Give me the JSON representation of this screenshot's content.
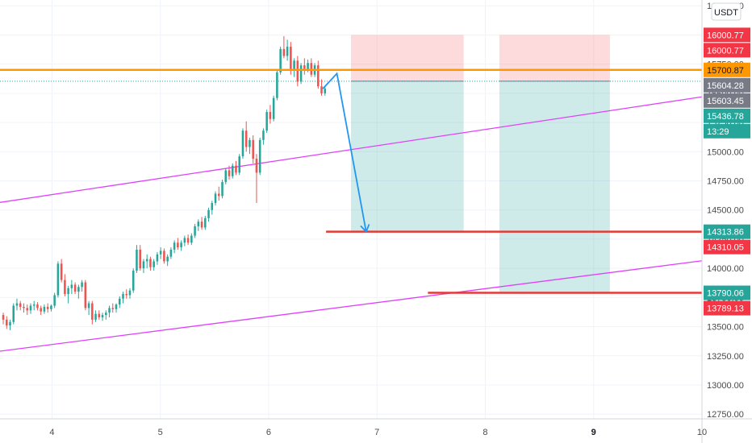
{
  "chart_data": {
    "type": "candlestick",
    "currency": "USDT",
    "x_axis": {
      "ticks": [
        {
          "label": "4",
          "value": 4
        },
        {
          "label": "5",
          "value": 5
        },
        {
          "label": "6",
          "value": 6
        },
        {
          "label": "7",
          "value": 7
        },
        {
          "label": "8",
          "value": 8
        },
        {
          "label": "9",
          "value": 9,
          "bold": true
        },
        {
          "label": "10",
          "value": 10
        }
      ],
      "range": [
        3.52,
        10.0
      ]
    },
    "y_axis": {
      "ticks": [
        "12750.00",
        "13000.00",
        "13250.00",
        "13500.00",
        "13750.00",
        "14000.00",
        "14250.00",
        "14500.00",
        "14750.00",
        "15000.00",
        "15250.00",
        "15500.00",
        "15750.00",
        "16000.00",
        "16250.00"
      ],
      "range": [
        12710,
        16300
      ]
    },
    "price_tags": [
      {
        "label": "16000.77",
        "value": 16000.77,
        "color": "#f23645"
      },
      {
        "label": "16000.77",
        "value": 15990,
        "color": "#f23645"
      },
      {
        "label": "15700.87",
        "value": 15700.87,
        "color": "#ff9800",
        "dark_text": true
      },
      {
        "label": "15604.28",
        "value": 15604.28,
        "color": "#787b86"
      },
      {
        "label": "15603.45",
        "value": 15603.45,
        "color": "#787b86"
      },
      {
        "label": "15436.78",
        "value": 15436.78,
        "color": "#26a69a"
      },
      {
        "label": "13:29",
        "value": 15350,
        "color": "#26a69a"
      },
      {
        "label": "14313.86",
        "value": 14313.86,
        "color": "#26a69a"
      },
      {
        "label": "14310.05",
        "value": 14310.05,
        "color": "#f23645"
      },
      {
        "label": "13790.06",
        "value": 13790.06,
        "color": "#26a69a"
      },
      {
        "label": "13789.13",
        "value": 13789.13,
        "color": "#f23645"
      }
    ],
    "horizontal_lines": [
      {
        "name": "resistance",
        "value": 15700.87,
        "x_start": 3.52,
        "x_end": 10.0,
        "color": "#ff9800"
      },
      {
        "name": "target-1",
        "value": 14313.86,
        "x_start": 6.53,
        "x_end": 10.0,
        "color": "#e53935"
      },
      {
        "name": "target-2",
        "value": 13790.06,
        "x_start": 7.47,
        "x_end": 10.0,
        "color": "#e53935"
      },
      {
        "name": "last-price",
        "value": 15603.45,
        "x_start": 3.52,
        "x_end": 10.0,
        "color": "#26a69a",
        "dotted": true
      }
    ],
    "trend_lines": [
      {
        "name": "upper-channel",
        "from": [
          3.52,
          14565
        ],
        "to": [
          10.0,
          15470
        ],
        "color": "#e040fb"
      },
      {
        "name": "lower-channel",
        "from": [
          3.52,
          13290
        ],
        "to": [
          10.0,
          14065
        ],
        "color": "#e040fb"
      }
    ],
    "positions": [
      {
        "name": "short-position-1",
        "x_start": 6.76,
        "x_end": 7.8,
        "stop": 16000.77,
        "entry": 15604.28,
        "target": 14313.86
      },
      {
        "name": "short-position-2",
        "x_start": 8.13,
        "x_end": 9.15,
        "stop": 16000.77,
        "entry": 15604.28,
        "target": 13790.06
      }
    ],
    "projection_path": [
      [
        6.5,
        15540
      ],
      [
        6.63,
        15670
      ],
      [
        6.9,
        14313.86
      ]
    ],
    "candles_ohlc": [
      [
        13600,
        13620,
        13520,
        13560
      ],
      [
        13560,
        13590,
        13480,
        13510
      ],
      [
        13510,
        13560,
        13470,
        13540
      ],
      [
        13540,
        13700,
        13520,
        13680
      ],
      [
        13680,
        13740,
        13640,
        13700
      ],
      [
        13700,
        13720,
        13640,
        13670
      ],
      [
        13670,
        13700,
        13620,
        13660
      ],
      [
        13660,
        13690,
        13600,
        13640
      ],
      [
        13640,
        13700,
        13610,
        13680
      ],
      [
        13680,
        13720,
        13640,
        13690
      ],
      [
        13690,
        13710,
        13640,
        13660
      ],
      [
        13660,
        13680,
        13600,
        13630
      ],
      [
        13630,
        13690,
        13610,
        13670
      ],
      [
        13670,
        13700,
        13620,
        13650
      ],
      [
        13650,
        13690,
        13630,
        13680
      ],
      [
        13680,
        13790,
        13660,
        13770
      ],
      [
        13770,
        14060,
        13750,
        14040
      ],
      [
        14040,
        14080,
        13880,
        13900
      ],
      [
        13900,
        13950,
        13760,
        13780
      ],
      [
        13780,
        13850,
        13700,
        13830
      ],
      [
        13830,
        13900,
        13780,
        13860
      ],
      [
        13860,
        13880,
        13780,
        13800
      ],
      [
        13800,
        13860,
        13740,
        13840
      ],
      [
        13840,
        13900,
        13800,
        13880
      ],
      [
        13880,
        13900,
        13640,
        13660
      ],
      [
        13660,
        13720,
        13600,
        13700
      ],
      [
        13700,
        13720,
        13520,
        13560
      ],
      [
        13560,
        13640,
        13540,
        13610
      ],
      [
        13610,
        13640,
        13560,
        13580
      ],
      [
        13580,
        13620,
        13550,
        13600
      ],
      [
        13600,
        13640,
        13560,
        13620
      ],
      [
        13620,
        13680,
        13580,
        13660
      ],
      [
        13660,
        13700,
        13620,
        13650
      ],
      [
        13650,
        13700,
        13620,
        13690
      ],
      [
        13690,
        13760,
        13660,
        13740
      ],
      [
        13740,
        13800,
        13700,
        13780
      ],
      [
        13780,
        13820,
        13740,
        13770
      ],
      [
        13770,
        13830,
        13740,
        13810
      ],
      [
        13810,
        14000,
        13790,
        13980
      ],
      [
        13980,
        14200,
        13960,
        14160
      ],
      [
        14160,
        14200,
        13980,
        14000
      ],
      [
        14000,
        14080,
        13960,
        14060
      ],
      [
        14060,
        14120,
        14000,
        14080
      ],
      [
        14080,
        14100,
        13980,
        14010
      ],
      [
        14010,
        14080,
        13980,
        14060
      ],
      [
        14060,
        14140,
        14030,
        14120
      ],
      [
        14120,
        14180,
        14080,
        14150
      ],
      [
        14150,
        14170,
        14040,
        14060
      ],
      [
        14060,
        14120,
        14020,
        14100
      ],
      [
        14100,
        14180,
        14080,
        14160
      ],
      [
        14160,
        14240,
        14130,
        14220
      ],
      [
        14220,
        14260,
        14160,
        14180
      ],
      [
        14180,
        14240,
        14150,
        14220
      ],
      [
        14220,
        14280,
        14190,
        14260
      ],
      [
        14260,
        14290,
        14200,
        14220
      ],
      [
        14220,
        14300,
        14200,
        14280
      ],
      [
        14280,
        14380,
        14260,
        14360
      ],
      [
        14360,
        14420,
        14320,
        14400
      ],
      [
        14400,
        14440,
        14330,
        14350
      ],
      [
        14350,
        14450,
        14330,
        14430
      ],
      [
        14430,
        14520,
        14400,
        14500
      ],
      [
        14500,
        14580,
        14460,
        14560
      ],
      [
        14560,
        14660,
        14540,
        14640
      ],
      [
        14640,
        14700,
        14580,
        14620
      ],
      [
        14620,
        14760,
        14600,
        14740
      ],
      [
        14740,
        14860,
        14720,
        14840
      ],
      [
        14840,
        14880,
        14760,
        14790
      ],
      [
        14790,
        14900,
        14770,
        14880
      ],
      [
        14880,
        14920,
        14800,
        14820
      ],
      [
        14820,
        14980,
        14800,
        14960
      ],
      [
        14960,
        15200,
        14940,
        15180
      ],
      [
        15180,
        15260,
        15000,
        15040
      ],
      [
        15040,
        15120,
        14980,
        15100
      ],
      [
        15100,
        15140,
        14900,
        14940
      ],
      [
        14940,
        14980,
        14560,
        14820
      ],
      [
        14820,
        15120,
        14800,
        15100
      ],
      [
        15100,
        15200,
        15060,
        15180
      ],
      [
        15180,
        15360,
        15160,
        15340
      ],
      [
        15340,
        15400,
        15240,
        15280
      ],
      [
        15280,
        15480,
        15260,
        15460
      ],
      [
        15460,
        15700,
        15440,
        15680
      ],
      [
        15680,
        15900,
        15660,
        15880
      ],
      [
        15880,
        15990,
        15800,
        15820
      ],
      [
        15820,
        15960,
        15780,
        15900
      ],
      [
        15900,
        15940,
        15660,
        15700
      ],
      [
        15700,
        15800,
        15640,
        15780
      ],
      [
        15780,
        15820,
        15560,
        15600
      ],
      [
        15600,
        15760,
        15580,
        15740
      ],
      [
        15740,
        15800,
        15660,
        15700
      ],
      [
        15700,
        15790,
        15680,
        15760
      ],
      [
        15760,
        15800,
        15640,
        15660
      ],
      [
        15660,
        15760,
        15640,
        15740
      ],
      [
        15740,
        15780,
        15540,
        15560
      ],
      [
        15560,
        15620,
        15480,
        15500
      ],
      [
        15500,
        15560,
        15480,
        15540
      ]
    ]
  }
}
